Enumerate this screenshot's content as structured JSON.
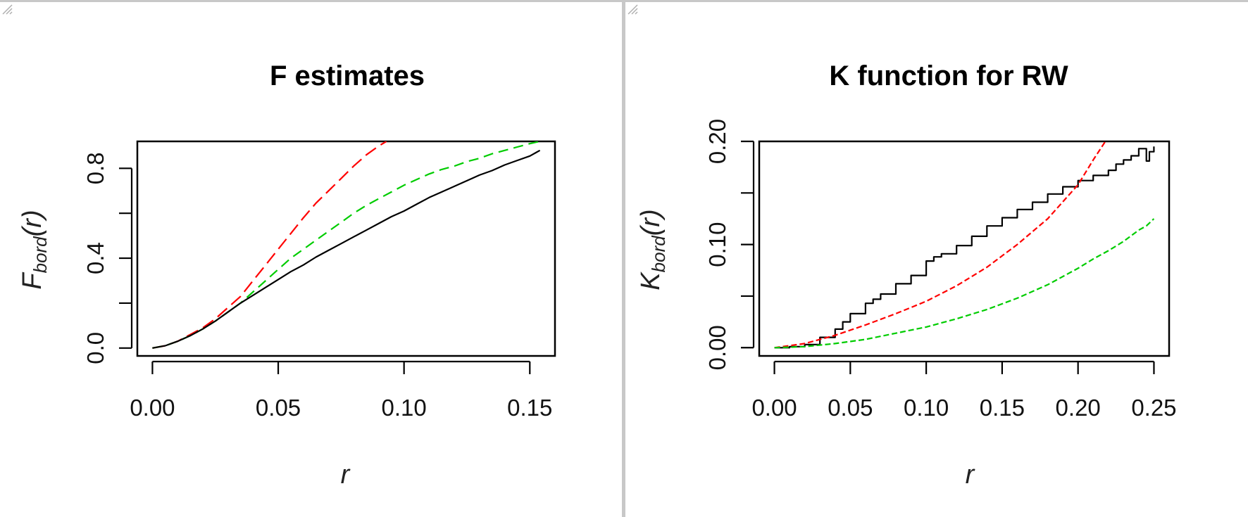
{
  "chart_data": [
    {
      "type": "line",
      "title": "F estimates",
      "xlabel": "r",
      "ylabel": {
        "main": "F",
        "sub": "bord",
        "arg": "(r)"
      },
      "xlim": [
        -0.006,
        0.16
      ],
      "ylim": [
        -0.035,
        0.92
      ],
      "x_ticks": [
        0,
        0.05,
        0.1,
        0.15
      ],
      "x_tick_labels": [
        "0.00",
        "0.05",
        "0.10",
        "0.15"
      ],
      "y_ticks": [
        0,
        0.2,
        0.4,
        0.6,
        0.8
      ],
      "y_tick_labels": [
        "0.0",
        "",
        "0.4",
        "",
        "0.8"
      ],
      "grid": false,
      "series": [
        {
          "color": "#ff0000",
          "dash": "18,8",
          "step": false,
          "x": [
            0,
            0.005,
            0.01,
            0.015,
            0.02,
            0.025,
            0.03,
            0.035,
            0.04,
            0.045,
            0.05,
            0.055,
            0.06,
            0.065,
            0.07,
            0.075,
            0.08,
            0.085,
            0.09,
            0.093
          ],
          "y": [
            0,
            0.01,
            0.03,
            0.06,
            0.09,
            0.13,
            0.18,
            0.23,
            0.3,
            0.37,
            0.44,
            0.51,
            0.58,
            0.645,
            0.7,
            0.755,
            0.81,
            0.86,
            0.9,
            0.92
          ]
        },
        {
          "color": "#00cc00",
          "dash": "14,8",
          "step": false,
          "x": [
            0,
            0.005,
            0.01,
            0.015,
            0.02,
            0.025,
            0.03,
            0.035,
            0.04,
            0.045,
            0.05,
            0.055,
            0.06,
            0.065,
            0.07,
            0.075,
            0.08,
            0.085,
            0.09,
            0.095,
            0.1,
            0.105,
            0.11,
            0.115,
            0.12,
            0.125,
            0.13,
            0.135,
            0.14,
            0.145,
            0.15,
            0.154
          ],
          "y": [
            0,
            0.01,
            0.03,
            0.055,
            0.085,
            0.12,
            0.16,
            0.2,
            0.25,
            0.3,
            0.35,
            0.4,
            0.44,
            0.48,
            0.52,
            0.56,
            0.6,
            0.635,
            0.665,
            0.695,
            0.725,
            0.75,
            0.775,
            0.795,
            0.81,
            0.83,
            0.845,
            0.865,
            0.88,
            0.895,
            0.91,
            0.92
          ]
        },
        {
          "color": "#000000",
          "dash": "",
          "step": false,
          "x": [
            0,
            0.005,
            0.01,
            0.015,
            0.02,
            0.025,
            0.03,
            0.035,
            0.04,
            0.045,
            0.05,
            0.055,
            0.06,
            0.065,
            0.07,
            0.075,
            0.08,
            0.085,
            0.09,
            0.095,
            0.1,
            0.105,
            0.11,
            0.115,
            0.12,
            0.125,
            0.13,
            0.135,
            0.14,
            0.145,
            0.15,
            0.154
          ],
          "y": [
            0,
            0.01,
            0.03,
            0.055,
            0.085,
            0.12,
            0.16,
            0.2,
            0.235,
            0.27,
            0.305,
            0.34,
            0.37,
            0.405,
            0.435,
            0.465,
            0.495,
            0.525,
            0.555,
            0.585,
            0.61,
            0.64,
            0.67,
            0.695,
            0.72,
            0.745,
            0.77,
            0.79,
            0.815,
            0.835,
            0.855,
            0.88
          ]
        }
      ]
    },
    {
      "type": "line",
      "title": "K function for RW",
      "xlabel": "r",
      "ylabel": {
        "main": "K",
        "sub": "bord",
        "arg": "(r)"
      },
      "xlim": [
        -0.01,
        0.26
      ],
      "ylim": [
        -0.008,
        0.2
      ],
      "x_ticks": [
        0,
        0.05,
        0.1,
        0.15,
        0.2,
        0.25
      ],
      "x_tick_labels": [
        "0.00",
        "0.05",
        "0.10",
        "0.15",
        "0.20",
        "0.25"
      ],
      "y_ticks": [
        0,
        0.05,
        0.1,
        0.15,
        0.2
      ],
      "y_tick_labels": [
        "0.00",
        "",
        "0.10",
        "",
        "0.20"
      ],
      "grid": false,
      "series": [
        {
          "color": "#000000",
          "dash": "",
          "step": true,
          "x": [
            0,
            0.01,
            0.02,
            0.03,
            0.04,
            0.045,
            0.05,
            0.06,
            0.065,
            0.07,
            0.08,
            0.09,
            0.1,
            0.105,
            0.11,
            0.12,
            0.13,
            0.14,
            0.15,
            0.16,
            0.17,
            0.18,
            0.19,
            0.2,
            0.21,
            0.22,
            0.225,
            0.23,
            0.235,
            0.24,
            0.245,
            0.247,
            0.25
          ],
          "y": [
            0,
            0.001,
            0.003,
            0.01,
            0.018,
            0.025,
            0.033,
            0.043,
            0.047,
            0.052,
            0.062,
            0.07,
            0.084,
            0.088,
            0.091,
            0.099,
            0.108,
            0.118,
            0.126,
            0.134,
            0.141,
            0.149,
            0.156,
            0.162,
            0.167,
            0.172,
            0.178,
            0.182,
            0.186,
            0.193,
            0.181,
            0.19,
            0.195
          ]
        },
        {
          "color": "#ff0000",
          "dash": "8,4",
          "step": false,
          "x": [
            0,
            0.02,
            0.04,
            0.06,
            0.08,
            0.1,
            0.12,
            0.14,
            0.16,
            0.18,
            0.2,
            0.21,
            0.218
          ],
          "y": [
            0,
            0.004,
            0.012,
            0.022,
            0.033,
            0.045,
            0.06,
            0.078,
            0.1,
            0.125,
            0.158,
            0.182,
            0.2
          ]
        },
        {
          "color": "#00cc00",
          "dash": "8,4",
          "step": false,
          "x": [
            0,
            0.02,
            0.04,
            0.06,
            0.08,
            0.1,
            0.12,
            0.14,
            0.16,
            0.18,
            0.2,
            0.21,
            0.22,
            0.23,
            0.24,
            0.245,
            0.25
          ],
          "y": [
            0,
            0.001,
            0.004,
            0.008,
            0.014,
            0.02,
            0.028,
            0.037,
            0.048,
            0.061,
            0.077,
            0.086,
            0.094,
            0.103,
            0.114,
            0.118,
            0.125
          ]
        }
      ]
    }
  ]
}
